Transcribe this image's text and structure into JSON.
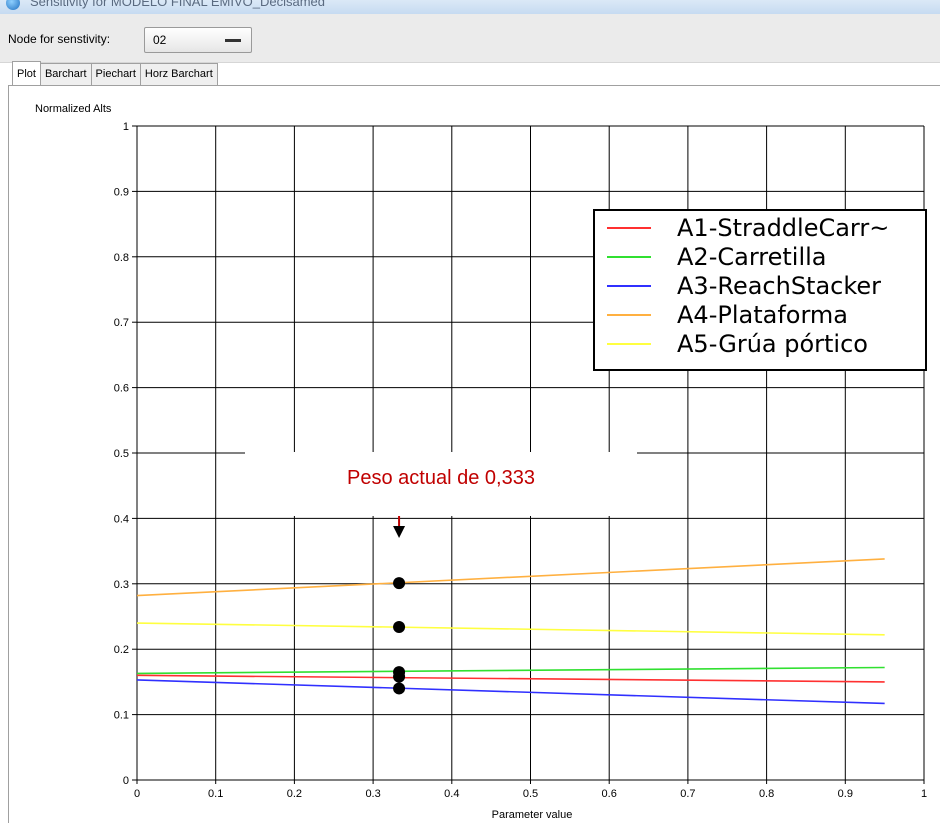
{
  "window": {
    "title": "Sensitivity for MODELO FINAL EMIVO_Decisamed"
  },
  "toolbar": {
    "node_label": "Node for senstivity:",
    "node_value": "02"
  },
  "tabs": [
    {
      "label": "Plot",
      "active": true
    },
    {
      "label": "Barchart",
      "active": false
    },
    {
      "label": "Piechart",
      "active": false
    },
    {
      "label": "Horz Barchart",
      "active": false
    }
  ],
  "annotation": {
    "text": "Peso actual de 0,333",
    "color": "#c00000"
  },
  "chart_data": {
    "type": "line",
    "xlabel": "Parameter value",
    "ylabel": "Normalized Alts",
    "xlim": [
      0,
      1
    ],
    "ylim": [
      0,
      1
    ],
    "xticks": [
      "0",
      "0.1",
      "0.2",
      "0.3",
      "0.4",
      "0.5",
      "0.6",
      "0.7",
      "0.8",
      "0.9",
      "1"
    ],
    "yticks": [
      "0",
      "0.1",
      "0.2",
      "0.3",
      "0.4",
      "0.5",
      "0.6",
      "0.7",
      "0.8",
      "0.9",
      "1"
    ],
    "grid": true,
    "legend_position": "top-right",
    "current_x": 0.333,
    "series": [
      {
        "name": "A1-StraddleCarr~",
        "color": "#ff3030",
        "x": [
          0,
          0.95
        ],
        "y": [
          0.16,
          0.15
        ],
        "current_y": 0.158
      },
      {
        "name": "A2-Carretilla",
        "color": "#30e030",
        "x": [
          0,
          0.95
        ],
        "y": [
          0.163,
          0.172
        ],
        "current_y": 0.165
      },
      {
        "name": "A3-ReachStacker",
        "color": "#3030ff",
        "x": [
          0,
          0.95
        ],
        "y": [
          0.153,
          0.117
        ],
        "current_y": 0.14
      },
      {
        "name": "A4-Plataforma",
        "color": "#ffb040",
        "x": [
          0,
          0.95
        ],
        "y": [
          0.282,
          0.338
        ],
        "current_y": 0.301
      },
      {
        "name": "A5-Grúa pórtico",
        "color": "#ffff40",
        "x": [
          0,
          0.95
        ],
        "y": [
          0.24,
          0.222
        ],
        "current_y": 0.234
      }
    ]
  }
}
